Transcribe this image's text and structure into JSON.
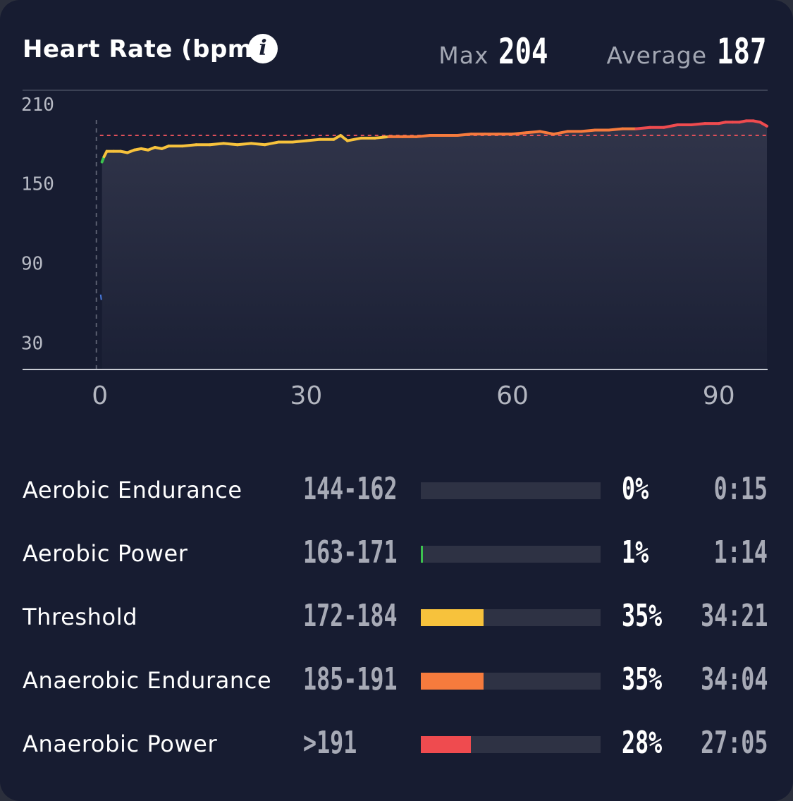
{
  "header": {
    "title": "Heart Rate (bpm)",
    "max_label": "Max",
    "max_value": "204",
    "avg_label": "Average",
    "avg_value": "187"
  },
  "chart_data": {
    "type": "area",
    "title": "Heart Rate (bpm)",
    "xlabel": "",
    "ylabel": "",
    "x_ticks": [
      0,
      30,
      60,
      90
    ],
    "y_ticks": [
      30,
      90,
      150,
      210
    ],
    "xlim": [
      -1,
      97
    ],
    "ylim": [
      10,
      219
    ],
    "grid": false,
    "reference_line": {
      "value": 186,
      "style": "dashed",
      "color": "#e0505a"
    },
    "series": [
      {
        "x": [
          0.3,
          0.6,
          1,
          2,
          3,
          4,
          5,
          6,
          7,
          8,
          9,
          10,
          12,
          14,
          16,
          18,
          20,
          22,
          24,
          26,
          28,
          30,
          32,
          34,
          35,
          36,
          38,
          40,
          42,
          44,
          46,
          48,
          50,
          52,
          54,
          56,
          58,
          60,
          62,
          64,
          66,
          68,
          70,
          72,
          74,
          76,
          78,
          80,
          82,
          84,
          86,
          88,
          90,
          91,
          92,
          93,
          94,
          95,
          96,
          97
        ],
        "y": [
          166,
          170,
          174,
          174,
          174,
          173,
          175,
          176,
          175,
          177,
          176,
          178,
          178,
          179,
          179,
          180,
          179,
          180,
          179,
          181,
          181,
          182,
          183,
          183,
          186,
          182,
          184,
          184,
          185,
          185,
          185,
          186,
          186,
          186,
          187,
          187,
          187,
          187,
          188,
          189,
          187,
          189,
          189,
          190,
          190,
          191,
          191,
          192,
          192,
          194,
          194,
          195,
          195,
          196,
          196,
          196,
          197,
          197,
          196,
          193
        ],
        "colors_by_zone": [
          "#4a7be0",
          "#3cc24f",
          "#f7c23c",
          "#f67b3d",
          "#ef4b4f"
        ]
      }
    ]
  },
  "zones": [
    {
      "name": "Aerobic Endurance",
      "range": "144-162",
      "percent_label": "0%",
      "percent": 0,
      "time": "0:15",
      "color": "#3cc24f"
    },
    {
      "name": "Aerobic Power",
      "range": "163-171",
      "percent_label": "1%",
      "percent": 1,
      "time": "1:14",
      "color": "#3cc24f"
    },
    {
      "name": "Threshold",
      "range": "172-184",
      "percent_label": "35%",
      "percent": 35,
      "time": "34:21",
      "color": "#f7c23c"
    },
    {
      "name": "Anaerobic Endurance",
      "range": "185-191",
      "percent_label": "35%",
      "percent": 35,
      "time": "34:04",
      "color": "#f67b3d"
    },
    {
      "name": "Anaerobic Power",
      "range": ">191",
      "percent_label": "28%",
      "percent": 28,
      "time": "27:05",
      "color": "#ef4b4f"
    }
  ]
}
